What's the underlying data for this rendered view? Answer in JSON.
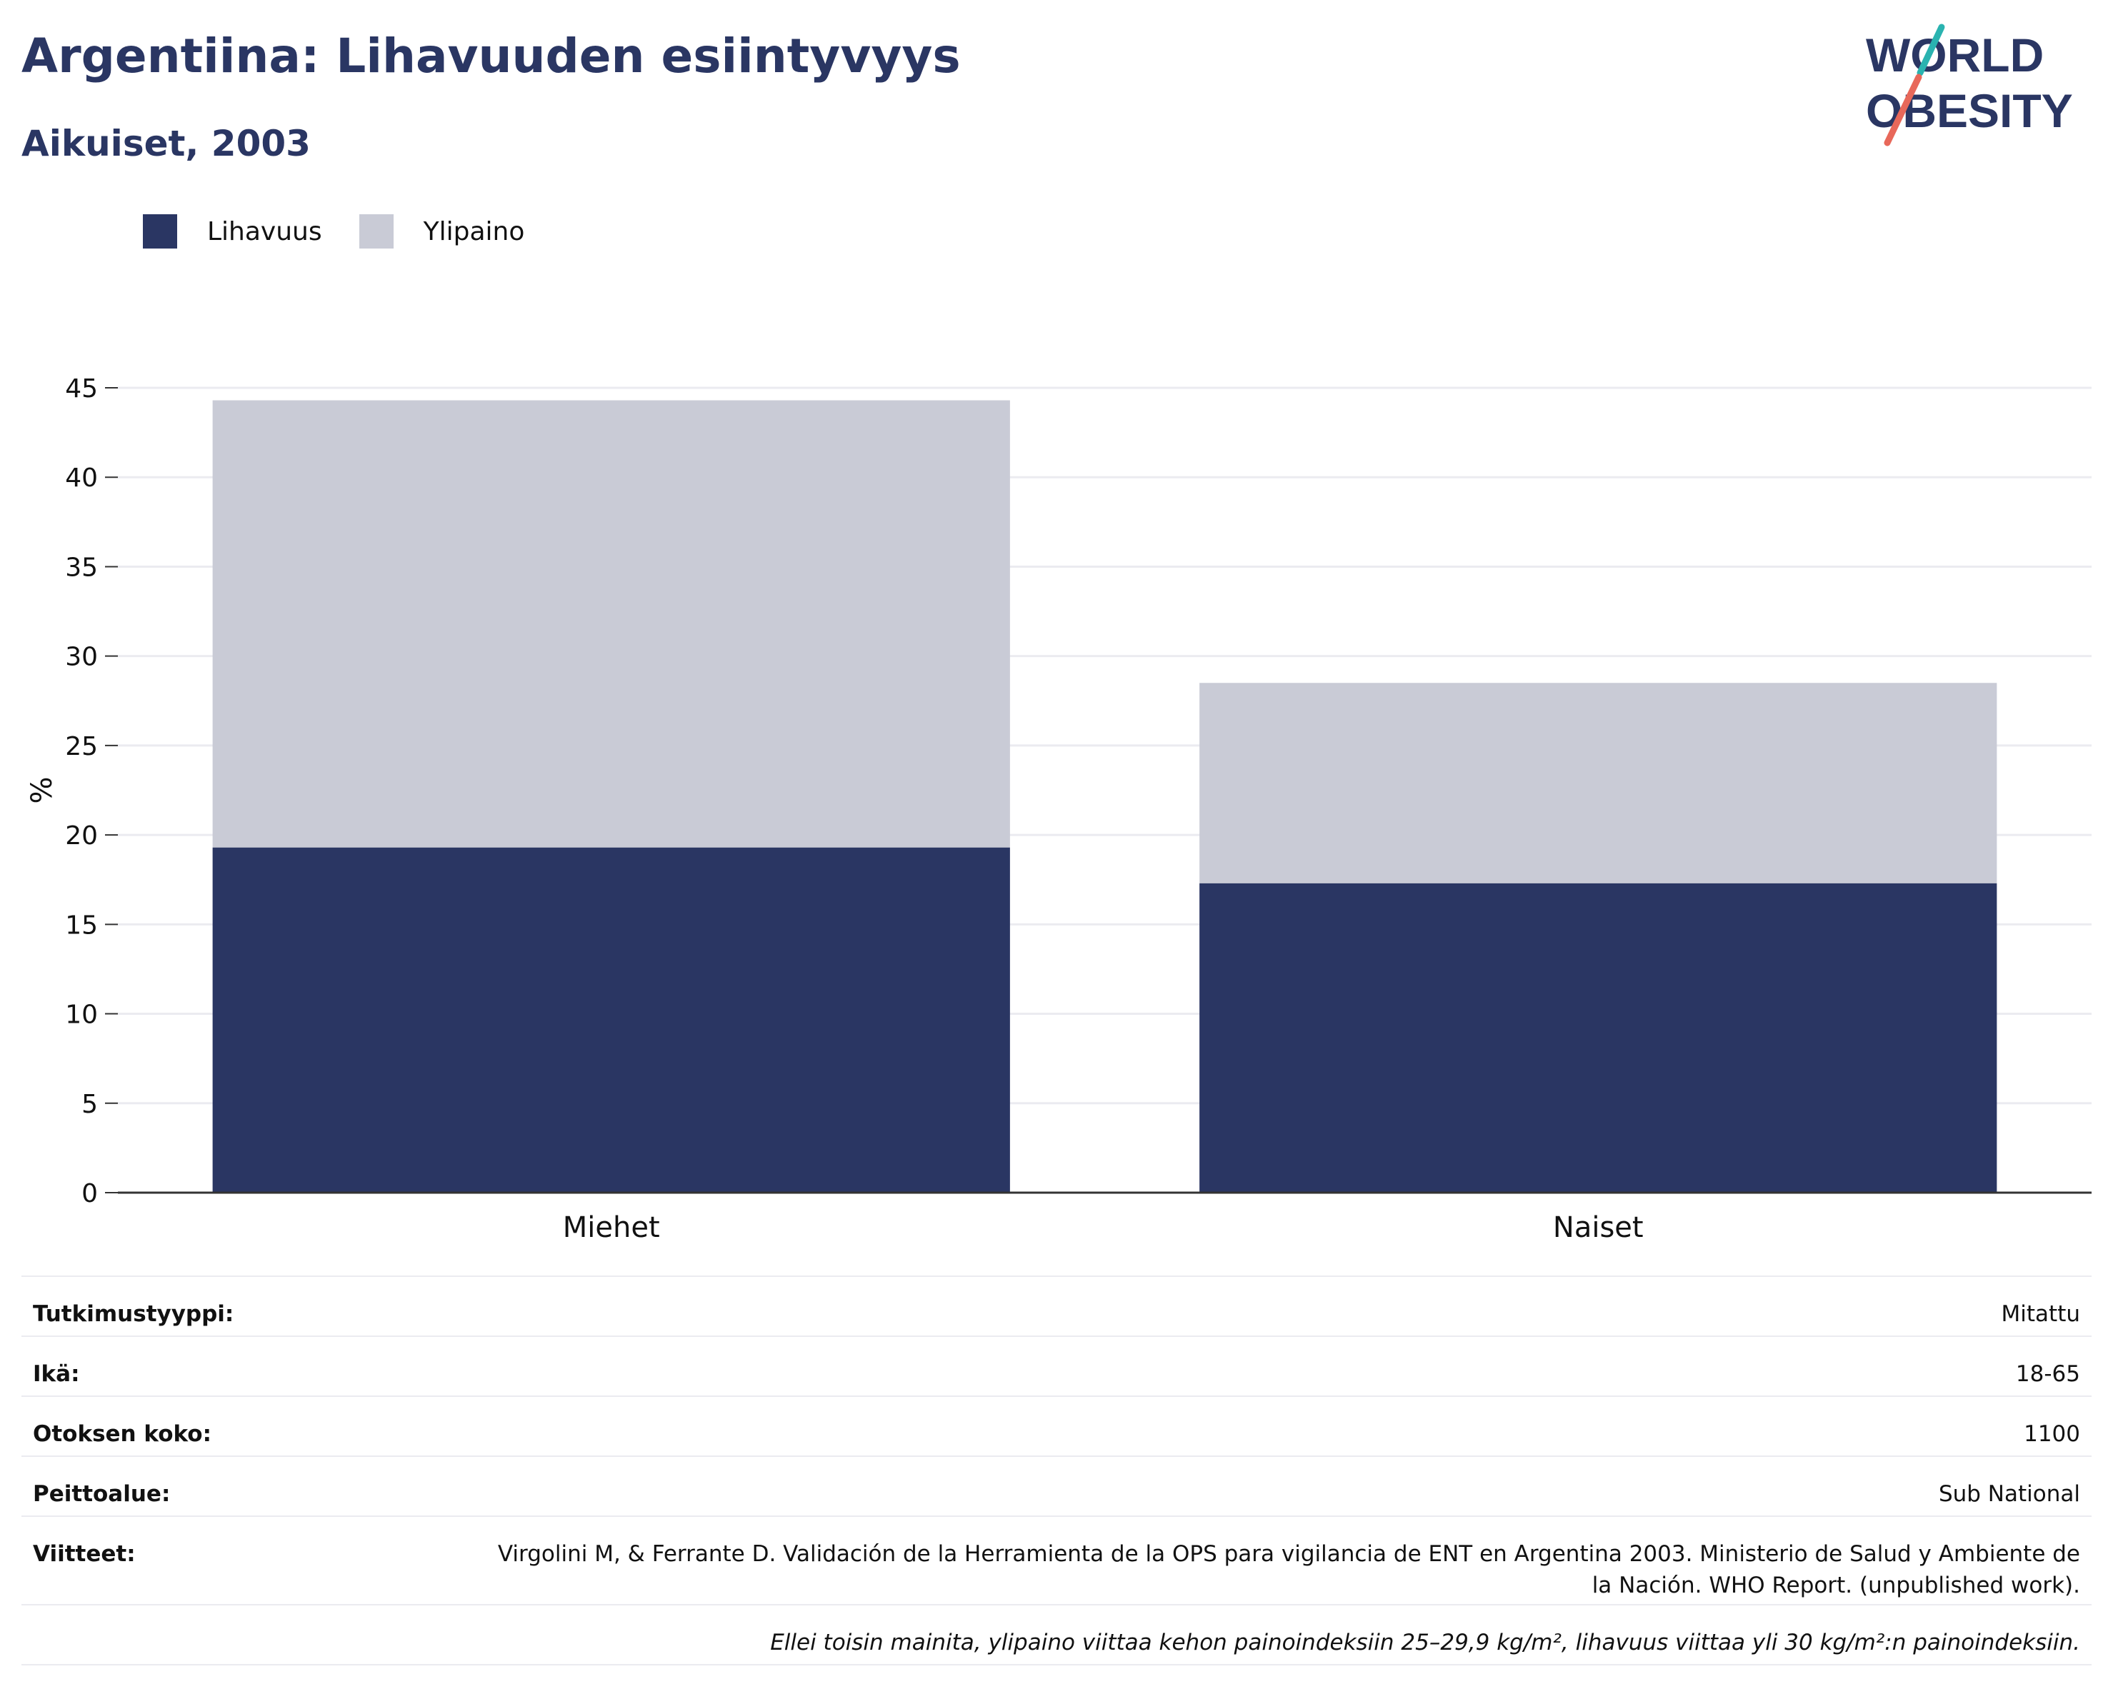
{
  "header": {
    "title": "Argentiina: Lihavuuden esiintyvyys",
    "subtitle": "Aikuiset, 2003"
  },
  "logo": {
    "line1": "WORLD",
    "line2": "OBESITY",
    "accent_teal": "#2ab3b0",
    "accent_coral": "#e8685a"
  },
  "legend": [
    {
      "label": "Lihavuus",
      "color": "#2a3663"
    },
    {
      "label": "Ylipaino",
      "color": "#c9cbd6"
    }
  ],
  "chart_data": {
    "type": "bar",
    "stacked": true,
    "categories": [
      "Miehet",
      "Naiset"
    ],
    "series": [
      {
        "name": "Lihavuus",
        "values": [
          19.3,
          17.3
        ],
        "color": "#2a3663"
      },
      {
        "name": "Ylipaino",
        "values": [
          25.0,
          11.2
        ],
        "color": "#c9cbd6"
      }
    ],
    "ylabel": "%",
    "ylim": [
      0,
      45
    ],
    "yticks": [
      "0",
      "5",
      "10",
      "15",
      "20",
      "25",
      "30",
      "35",
      "40",
      "45"
    ],
    "grid": true,
    "legend_position": "top-left"
  },
  "info": {
    "rows": [
      {
        "label": "Tutkimustyyppi:",
        "value": "Mitattu"
      },
      {
        "label": "Ikä:",
        "value": "18-65"
      },
      {
        "label": "Otoksen koko:",
        "value": "1100"
      },
      {
        "label": "Peittoalue:",
        "value": "Sub National"
      },
      {
        "label": "Viitteet:",
        "value": "Virgolini M, & Ferrante D. Validación de la Herramienta de la OPS para vigilancia de ENT en Argentina 2003. Ministerio de Salud y Ambiente de la Nación. WHO Report. (unpublished work)."
      }
    ],
    "note": "Ellei toisin mainita, ylipaino viittaa kehon painoindeksiin 25–29,9 kg/m², lihavuus viittaa yli 30 kg/m²:n painoindeksiin."
  }
}
